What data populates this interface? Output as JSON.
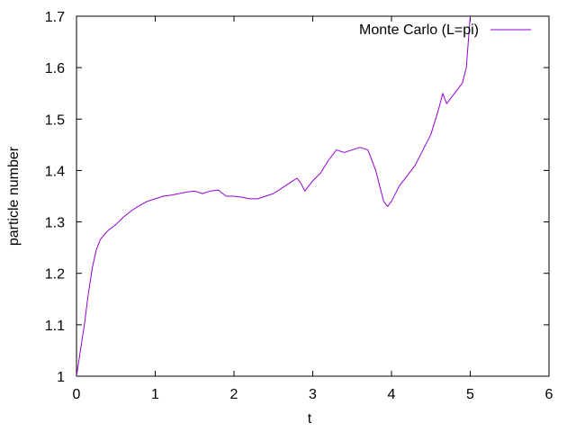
{
  "chart_data": {
    "type": "line",
    "title": "",
    "xlabel": "t",
    "ylabel": "particle number",
    "xlim": [
      0,
      6
    ],
    "ylim": [
      1,
      1.7
    ],
    "x_ticks": [
      "0",
      "1",
      "2",
      "3",
      "4",
      "5",
      "6"
    ],
    "y_ticks": [
      "1",
      "1.1",
      "1.2",
      "1.3",
      "1.4",
      "1.5",
      "1.6",
      "1.7"
    ],
    "grid": false,
    "legend_position": "top-right",
    "series": [
      {
        "name": "Monte Carlo (L=pi)",
        "color": "#9400d3",
        "x": [
          0,
          0.05,
          0.1,
          0.15,
          0.2,
          0.25,
          0.3,
          0.35,
          0.4,
          0.5,
          0.6,
          0.7,
          0.8,
          0.9,
          1.0,
          1.1,
          1.2,
          1.3,
          1.4,
          1.5,
          1.6,
          1.7,
          1.8,
          1.9,
          2.0,
          2.1,
          2.2,
          2.3,
          2.4,
          2.5,
          2.6,
          2.7,
          2.8,
          2.85,
          2.9,
          3.0,
          3.1,
          3.2,
          3.3,
          3.4,
          3.5,
          3.6,
          3.7,
          3.8,
          3.85,
          3.9,
          3.95,
          4.0,
          4.1,
          4.2,
          4.3,
          4.4,
          4.5,
          4.6,
          4.65,
          4.7,
          4.8,
          4.9,
          4.95,
          5.0
        ],
        "y": [
          1.0,
          1.05,
          1.1,
          1.16,
          1.21,
          1.245,
          1.265,
          1.275,
          1.283,
          1.295,
          1.31,
          1.322,
          1.332,
          1.34,
          1.345,
          1.35,
          1.352,
          1.355,
          1.358,
          1.36,
          1.355,
          1.36,
          1.362,
          1.35,
          1.35,
          1.348,
          1.345,
          1.345,
          1.35,
          1.355,
          1.365,
          1.375,
          1.385,
          1.375,
          1.36,
          1.38,
          1.395,
          1.42,
          1.44,
          1.435,
          1.44,
          1.445,
          1.44,
          1.4,
          1.37,
          1.34,
          1.33,
          1.34,
          1.37,
          1.39,
          1.41,
          1.44,
          1.47,
          1.52,
          1.55,
          1.53,
          1.55,
          1.57,
          1.6,
          1.7
        ]
      }
    ]
  }
}
